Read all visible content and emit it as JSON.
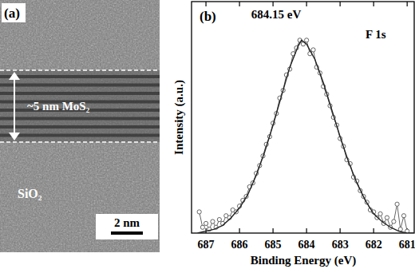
{
  "image_panel": {
    "panel_label": "(a)",
    "layer_label": "~5 nm MoS₂",
    "substrate_label": "SiO₂",
    "scale_bar": "2 nm"
  },
  "chart_data": {
    "type": "line",
    "panel_label": "(b)",
    "title": "F 1s",
    "annotation": "684.15 eV",
    "x_label": "Binding Energy (eV)",
    "y_label": "Intensity (a.u.)",
    "xlim": [
      687.43,
      680.79
    ],
    "xticks": [
      687,
      686,
      685,
      684,
      683,
      682,
      681
    ],
    "ylim": [
      0,
      1.2
    ],
    "tick_labels": "x",
    "grid": false,
    "series": [
      {
        "type": "line",
        "marker": "circle",
        "color": "#555555",
        "x": [
          687.2,
          687.1,
          687.0,
          686.9,
          686.8,
          686.7,
          686.6,
          686.5,
          686.4,
          686.3,
          686.2,
          686.1,
          686.0,
          685.9,
          685.8,
          685.7,
          685.6,
          685.5,
          685.4,
          685.3,
          685.2,
          685.1,
          685.0,
          684.9,
          684.8,
          684.7,
          684.6,
          684.5,
          684.4,
          684.3,
          684.2,
          684.1,
          684.0,
          683.9,
          683.8,
          683.7,
          683.6,
          683.5,
          683.4,
          683.3,
          683.2,
          683.1,
          683.0,
          682.9,
          682.8,
          682.7,
          682.6,
          682.5,
          682.4,
          682.3,
          682.2,
          682.1,
          682.0,
          681.9,
          681.8,
          681.7,
          681.6,
          681.5,
          681.4,
          681.3,
          681.2,
          681.1,
          681.0
        ],
        "values": [
          0.11,
          0.03,
          0.05,
          0.02,
          0.06,
          0.03,
          0.07,
          0.05,
          0.09,
          0.08,
          0.12,
          0.11,
          0.14,
          0.17,
          0.19,
          0.24,
          0.26,
          0.31,
          0.35,
          0.4,
          0.46,
          0.5,
          0.57,
          0.62,
          0.7,
          0.74,
          0.82,
          0.85,
          0.93,
          0.96,
          1.0,
          0.98,
          1.0,
          0.93,
          0.95,
          0.86,
          0.83,
          0.76,
          0.72,
          0.66,
          0.6,
          0.56,
          0.49,
          0.45,
          0.38,
          0.36,
          0.29,
          0.27,
          0.22,
          0.19,
          0.16,
          0.12,
          0.11,
          0.08,
          0.1,
          0.05,
          0.08,
          0.03,
          0.06,
          0.15,
          0.02,
          0.09,
          0.01
        ]
      },
      {
        "type": "line",
        "marker": "none",
        "color": "#222222",
        "x": [
          687.25,
          687.0,
          686.75,
          686.5,
          686.25,
          686.0,
          685.75,
          685.5,
          685.25,
          685.0,
          684.75,
          684.5,
          684.25,
          684.15,
          684.0,
          683.75,
          683.5,
          683.25,
          683.0,
          682.75,
          682.5,
          682.25,
          682.0,
          681.75,
          681.5,
          681.25,
          681.0,
          680.8
        ],
        "values": [
          0.0,
          0.01,
          0.02,
          0.04,
          0.08,
          0.13,
          0.2,
          0.3,
          0.42,
          0.56,
          0.71,
          0.86,
          0.97,
          1.0,
          0.98,
          0.9,
          0.78,
          0.64,
          0.5,
          0.37,
          0.26,
          0.17,
          0.1,
          0.06,
          0.03,
          0.01,
          0.0,
          0.0
        ]
      }
    ]
  }
}
